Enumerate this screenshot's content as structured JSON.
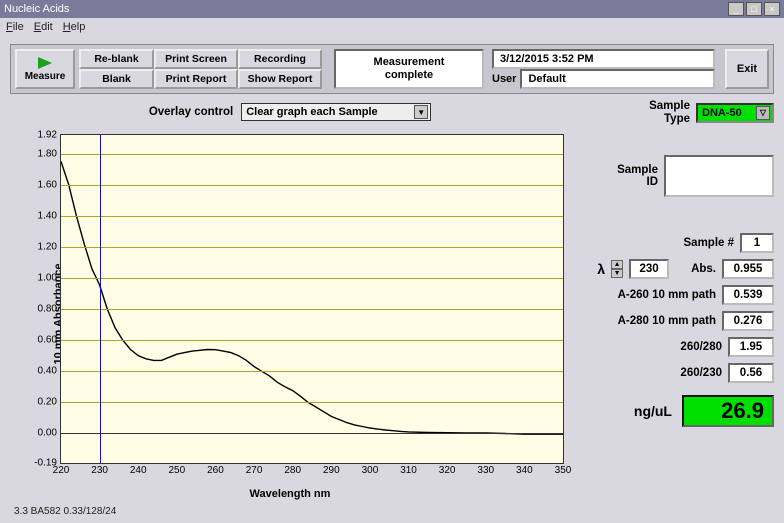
{
  "window": {
    "title": "Nucleic Acids"
  },
  "menu": {
    "file": "File",
    "edit": "Edit",
    "help": "Help"
  },
  "toolbar": {
    "measure": "Measure",
    "reblank": "Re-blank",
    "blank": "Blank",
    "print_screen": "Print Screen",
    "print_report": "Print Report",
    "recording": "Recording",
    "show_report": "Show Report",
    "exit": "Exit",
    "status_line1": "Measurement",
    "status_line2": "complete",
    "datetime": "3/12/2015  3:52 PM",
    "user_label": "User",
    "user_value": "Default"
  },
  "overlay": {
    "label": "Overlay control",
    "selected": "Clear graph each Sample"
  },
  "chart": {
    "type": "line",
    "ylabel": "10 mm Absorbance",
    "xlabel": "Wavelength nm",
    "background": "#fffde6",
    "grid_color": "#b8a020",
    "trace_color": "#000000",
    "cursor_color": "#1010c0",
    "cursor_x": 230,
    "xlim": [
      220,
      350
    ],
    "ylim": [
      -0.19,
      1.92
    ],
    "yticks": [
      -0.19,
      0.0,
      0.2,
      0.4,
      0.6,
      0.8,
      1.0,
      1.2,
      1.4,
      1.6,
      1.8,
      1.92
    ],
    "ytick_labels": [
      "-0.19",
      "0.00",
      "0.20",
      "0.40",
      "0.60",
      "0.80",
      "1.00",
      "1.20",
      "1.40",
      "1.60",
      "1.80",
      "1.92"
    ],
    "xticks": [
      220,
      230,
      240,
      250,
      260,
      270,
      280,
      290,
      300,
      310,
      320,
      330,
      340,
      350
    ],
    "data": [
      [
        220,
        1.75
      ],
      [
        222,
        1.6
      ],
      [
        224,
        1.4
      ],
      [
        226,
        1.22
      ],
      [
        228,
        1.06
      ],
      [
        230,
        0.955
      ],
      [
        232,
        0.8
      ],
      [
        234,
        0.68
      ],
      [
        236,
        0.6
      ],
      [
        238,
        0.54
      ],
      [
        240,
        0.5
      ],
      [
        242,
        0.48
      ],
      [
        244,
        0.47
      ],
      [
        246,
        0.47
      ],
      [
        248,
        0.49
      ],
      [
        250,
        0.51
      ],
      [
        252,
        0.52
      ],
      [
        254,
        0.53
      ],
      [
        256,
        0.535
      ],
      [
        258,
        0.54
      ],
      [
        260,
        0.539
      ],
      [
        262,
        0.53
      ],
      [
        264,
        0.52
      ],
      [
        266,
        0.5
      ],
      [
        268,
        0.47
      ],
      [
        270,
        0.43
      ],
      [
        272,
        0.4
      ],
      [
        274,
        0.37
      ],
      [
        276,
        0.33
      ],
      [
        278,
        0.3
      ],
      [
        280,
        0.276
      ],
      [
        282,
        0.24
      ],
      [
        284,
        0.2
      ],
      [
        286,
        0.17
      ],
      [
        288,
        0.14
      ],
      [
        290,
        0.11
      ],
      [
        292,
        0.09
      ],
      [
        294,
        0.07
      ],
      [
        296,
        0.055
      ],
      [
        298,
        0.045
      ],
      [
        300,
        0.035
      ],
      [
        302,
        0.028
      ],
      [
        304,
        0.022
      ],
      [
        306,
        0.018
      ],
      [
        308,
        0.013
      ],
      [
        310,
        0.01
      ],
      [
        315,
        0.006
      ],
      [
        320,
        0.005
      ],
      [
        325,
        0.003
      ],
      [
        330,
        0.003
      ],
      [
        335,
        0.0
      ],
      [
        340,
        -0.005
      ],
      [
        345,
        -0.005
      ],
      [
        350,
        -0.005
      ]
    ]
  },
  "right": {
    "sample_type_label": "Sample\nType",
    "sample_type_value": "DNA-50",
    "sample_id_label": "Sample\nID",
    "sample_num_label": "Sample #",
    "sample_num_value": "1",
    "lambda_label": "λ",
    "lambda_value": "230",
    "abs_label": "Abs.",
    "abs_value": "0.955",
    "a260_label": "A-260 10 mm path",
    "a260_value": "0.539",
    "a280_label": "A-280 10 mm path",
    "a280_value": "0.276",
    "r260_280_label": "260/280",
    "r260_280_value": "1.95",
    "r260_230_label": "260/230",
    "r260_230_value": "0.56",
    "nguL_label": "ng/uL",
    "nguL_value": "26.9"
  },
  "footer": {
    "version": "3.3 BA582 0.33/128/24"
  },
  "colors": {
    "bg": "#d9d8e0",
    "accent_green": "#00e000",
    "field_bg": "#ffffff"
  }
}
